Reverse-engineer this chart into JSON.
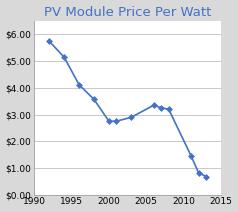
{
  "title": "PV Module Price Per Watt",
  "title_color": "#4472C4",
  "title_fontsize": 9.5,
  "x": [
    1992,
    1994,
    1996,
    1998,
    2000,
    2001,
    2003,
    2006,
    2007,
    2008,
    2011,
    2012,
    2013
  ],
  "y": [
    5.75,
    5.15,
    4.12,
    3.57,
    2.75,
    2.75,
    2.9,
    3.35,
    3.25,
    3.2,
    1.45,
    0.82,
    0.68
  ],
  "line_color": "#4472C4",
  "marker": "D",
  "marker_size": 3.0,
  "xlim": [
    1990,
    2015
  ],
  "ylim": [
    0.0,
    6.5
  ],
  "xticks": [
    1990,
    1995,
    2000,
    2005,
    2010,
    2015
  ],
  "yticks": [
    0.0,
    1.0,
    2.0,
    3.0,
    4.0,
    5.0,
    6.0
  ],
  "ytick_labels": [
    "$0.00",
    "$1.00",
    "$2.00",
    "$3.00",
    "$4.00",
    "$5.00",
    "$6.00"
  ],
  "outer_bg_color": "#D9D9D9",
  "plot_bg_color": "#FFFFFF",
  "grid_color": "#C8C8C8",
  "tick_fontsize": 6.5,
  "border_color": "#AAAAAA"
}
